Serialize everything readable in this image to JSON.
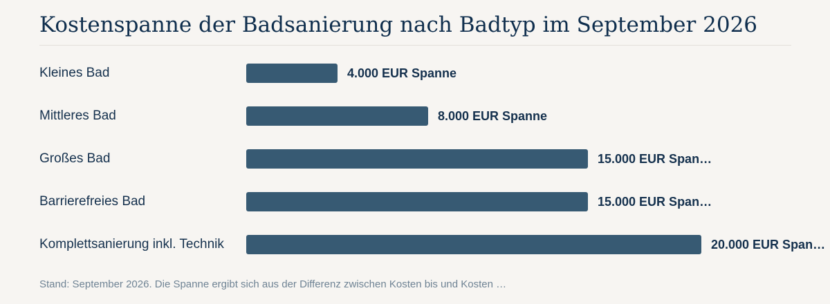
{
  "chart_data": {
    "type": "bar",
    "orientation": "horizontal",
    "title": "Kostenspanne der Badsanierung nach Badtyp im September 2026",
    "categories": [
      "Kleines Bad",
      "Mittleres Bad",
      "Großes Bad",
      "Barrierefreies Bad",
      "Komplettsanierung inkl. Technik"
    ],
    "values": [
      4000,
      8000,
      15000,
      15000,
      20000
    ],
    "value_labels": [
      "4.000 EUR Spanne",
      "8.000 EUR Spanne",
      "15.000 EUR Span…",
      "15.000 EUR Span…",
      "20.000 EUR Span…"
    ],
    "xlim": [
      0,
      20000
    ],
    "bar_color": "#375a73",
    "grid": false,
    "legend": "none"
  },
  "footnote": "Stand: September 2026. Die Spanne ergibt sich aus der Differenz zwischen Kosten bis und Kosten …"
}
